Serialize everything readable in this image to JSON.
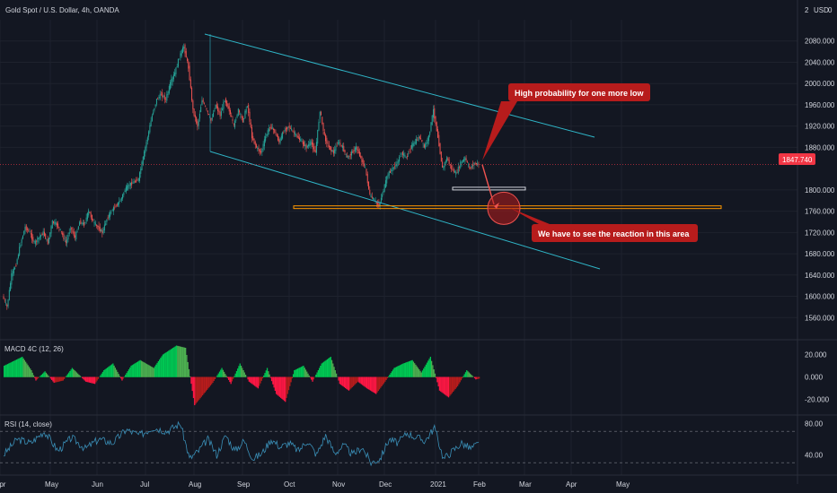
{
  "chart_data": [
    {
      "type": "candlestick",
      "title": "Gold Spot / U.S. Dollar, 4h, OANDA",
      "currency": "USD",
      "ylim": [
        1520,
        2120
      ],
      "y_ticks": [
        {
          "v": 2080,
          "label": "2080.000"
        },
        {
          "v": 2040,
          "label": "2040.000"
        },
        {
          "v": 2000,
          "label": "2000.000"
        },
        {
          "v": 1960,
          "label": "1960.000"
        },
        {
          "v": 1920,
          "label": "1920.000"
        },
        {
          "v": 1880,
          "label": "1880.000"
        },
        {
          "v": 1800,
          "label": "1800.000"
        },
        {
          "v": 1760,
          "label": "1760.000"
        },
        {
          "v": 1720,
          "label": "1720.000"
        },
        {
          "v": 1680,
          "label": "1680.000"
        },
        {
          "v": 1640,
          "label": "1640.000"
        },
        {
          "v": 1600,
          "label": "1600.000"
        },
        {
          "v": 1560,
          "label": "1560.000"
        }
      ],
      "partial_top_label": "2",
      "partial_top_label_tail": "0",
      "last_price": 1847.74,
      "last_price_label": "1847.740",
      "x_ticks": [
        "Apr",
        "May",
        "Jun",
        "Jul",
        "Aug",
        "Sep",
        "Oct",
        "Nov",
        "Dec",
        "2021",
        "Feb",
        "Mar",
        "Apr",
        "May"
      ],
      "price_path": [
        [
          0,
          1600
        ],
        [
          1,
          1580
        ],
        [
          2,
          1640
        ],
        [
          3,
          1660
        ],
        [
          4,
          1700
        ],
        [
          5,
          1730
        ],
        [
          6,
          1720
        ],
        [
          7,
          1700
        ],
        [
          8,
          1710
        ],
        [
          9,
          1720
        ],
        [
          10,
          1700
        ],
        [
          11,
          1740
        ],
        [
          12,
          1735
        ],
        [
          13,
          1720
        ],
        [
          14,
          1700
        ],
        [
          15,
          1730
        ],
        [
          16,
          1710
        ],
        [
          17,
          1740
        ],
        [
          18,
          1735
        ],
        [
          19,
          1760
        ],
        [
          20,
          1740
        ],
        [
          21,
          1730
        ],
        [
          22,
          1720
        ],
        [
          23,
          1745
        ],
        [
          24,
          1760
        ],
        [
          25,
          1770
        ],
        [
          26,
          1780
        ],
        [
          27,
          1800
        ],
        [
          28,
          1810
        ],
        [
          29,
          1815
        ],
        [
          30,
          1820
        ],
        [
          31,
          1860
        ],
        [
          32,
          1900
        ],
        [
          33,
          1940
        ],
        [
          34,
          1970
        ],
        [
          35,
          1980
        ],
        [
          36,
          1970
        ],
        [
          37,
          2000
        ],
        [
          38,
          2020
        ],
        [
          39,
          2050
        ],
        [
          40,
          2070
        ],
        [
          41,
          2030
        ],
        [
          42,
          1950
        ],
        [
          43,
          1920
        ],
        [
          44,
          1970
        ],
        [
          45,
          1950
        ],
        [
          46,
          1930
        ],
        [
          47,
          1960
        ],
        [
          48,
          1940
        ],
        [
          49,
          1970
        ],
        [
          50,
          1950
        ],
        [
          51,
          1920
        ],
        [
          52,
          1950
        ],
        [
          53,
          1930
        ],
        [
          54,
          1960
        ],
        [
          55,
          1900
        ],
        [
          56,
          1880
        ],
        [
          57,
          1870
        ],
        [
          58,
          1900
        ],
        [
          59,
          1920
        ],
        [
          60,
          1910
        ],
        [
          61,
          1890
        ],
        [
          62,
          1910
        ],
        [
          63,
          1920
        ],
        [
          64,
          1910
        ],
        [
          65,
          1900
        ],
        [
          66,
          1890
        ],
        [
          67,
          1880
        ],
        [
          68,
          1890
        ],
        [
          69,
          1870
        ],
        [
          70,
          1950
        ],
        [
          71,
          1900
        ],
        [
          72,
          1880
        ],
        [
          73,
          1870
        ],
        [
          74,
          1890
        ],
        [
          75,
          1880
        ],
        [
          76,
          1860
        ],
        [
          77,
          1870
        ],
        [
          78,
          1880
        ],
        [
          79,
          1860
        ],
        [
          80,
          1840
        ],
        [
          81,
          1790
        ],
        [
          82,
          1780
        ],
        [
          83,
          1770
        ],
        [
          84,
          1800
        ],
        [
          85,
          1830
        ],
        [
          86,
          1840
        ],
        [
          87,
          1850
        ],
        [
          88,
          1870
        ],
        [
          89,
          1860
        ],
        [
          90,
          1880
        ],
        [
          91,
          1890
        ],
        [
          92,
          1900
        ],
        [
          93,
          1880
        ],
        [
          94,
          1900
        ],
        [
          95,
          1950
        ],
        [
          96,
          1900
        ],
        [
          97,
          1840
        ],
        [
          98,
          1860
        ],
        [
          99,
          1840
        ],
        [
          100,
          1830
        ],
        [
          101,
          1850
        ],
        [
          102,
          1860
        ],
        [
          103,
          1840
        ],
        [
          104,
          1850
        ],
        [
          105,
          1848
        ]
      ],
      "channel_upper": [
        [
          228,
          38
        ],
        [
          662,
          153
        ]
      ],
      "channel_lower": [
        [
          234,
          169
        ],
        [
          668,
          300
        ]
      ],
      "support_zone": {
        "y_top": 1770,
        "y_bottom": 1766,
        "label": ""
      },
      "small_zone": {
        "y_top": 1805,
        "y_bottom": 1800
      },
      "target_circle": {
        "y": 1762
      },
      "annotations": [
        {
          "text": "High probability for one more low"
        },
        {
          "text": "We have to see the reaction in this area"
        }
      ]
    },
    {
      "type": "histogram",
      "title": "MACD 4C (12, 26)",
      "y_ticks": [
        {
          "v": 20,
          "label": "20.000"
        },
        {
          "v": 0,
          "label": "0.000"
        },
        {
          "v": -20,
          "label": "-20.000"
        }
      ],
      "ylim": [
        -30,
        30
      ],
      "values_path": [
        [
          0,
          10
        ],
        [
          4,
          18
        ],
        [
          6,
          6
        ],
        [
          7,
          -3
        ],
        [
          9,
          5
        ],
        [
          11,
          -5
        ],
        [
          13,
          -3
        ],
        [
          15,
          8
        ],
        [
          18,
          -4
        ],
        [
          20,
          -6
        ],
        [
          22,
          6
        ],
        [
          24,
          12
        ],
        [
          26,
          -3
        ],
        [
          28,
          10
        ],
        [
          30,
          15
        ],
        [
          33,
          8
        ],
        [
          35,
          20
        ],
        [
          38,
          28
        ],
        [
          40,
          26
        ],
        [
          42,
          -25
        ],
        [
          44,
          -15
        ],
        [
          46,
          -5
        ],
        [
          48,
          8
        ],
        [
          50,
          -6
        ],
        [
          52,
          12
        ],
        [
          54,
          -4
        ],
        [
          56,
          -10
        ],
        [
          58,
          8
        ],
        [
          60,
          -15
        ],
        [
          62,
          -22
        ],
        [
          64,
          6
        ],
        [
          66,
          10
        ],
        [
          68,
          -4
        ],
        [
          70,
          12
        ],
        [
          72,
          18
        ],
        [
          74,
          -6
        ],
        [
          76,
          -12
        ],
        [
          78,
          -4
        ],
        [
          80,
          -10
        ],
        [
          82,
          -15
        ],
        [
          84,
          -4
        ],
        [
          86,
          8
        ],
        [
          88,
          12
        ],
        [
          90,
          15
        ],
        [
          92,
          4
        ],
        [
          94,
          18
        ],
        [
          96,
          -12
        ],
        [
          98,
          -18
        ],
        [
          100,
          -8
        ],
        [
          102,
          6
        ],
        [
          104,
          -2
        ],
        [
          105,
          -1
        ]
      ]
    },
    {
      "type": "line",
      "title": "RSI (14, close)",
      "y_ticks": [
        {
          "v": 80,
          "label": "80.00"
        },
        {
          "v": 40,
          "label": "40.00"
        }
      ],
      "bands": [
        70,
        30
      ],
      "ylim": [
        20,
        85
      ],
      "values_path": [
        [
          0,
          40
        ],
        [
          3,
          60
        ],
        [
          6,
          55
        ],
        [
          9,
          70
        ],
        [
          12,
          45
        ],
        [
          15,
          62
        ],
        [
          18,
          48
        ],
        [
          21,
          60
        ],
        [
          24,
          55
        ],
        [
          27,
          72
        ],
        [
          30,
          65
        ],
        [
          33,
          75
        ],
        [
          36,
          70
        ],
        [
          39,
          80
        ],
        [
          41,
          35
        ],
        [
          43,
          45
        ],
        [
          45,
          60
        ],
        [
          47,
          40
        ],
        [
          49,
          65
        ],
        [
          51,
          45
        ],
        [
          53,
          58
        ],
        [
          55,
          35
        ],
        [
          57,
          42
        ],
        [
          59,
          60
        ],
        [
          61,
          50
        ],
        [
          63,
          55
        ],
        [
          65,
          45
        ],
        [
          67,
          58
        ],
        [
          69,
          40
        ],
        [
          71,
          65
        ],
        [
          73,
          42
        ],
        [
          75,
          52
        ],
        [
          77,
          40
        ],
        [
          79,
          50
        ],
        [
          81,
          30
        ],
        [
          83,
          35
        ],
        [
          85,
          60
        ],
        [
          87,
          55
        ],
        [
          89,
          68
        ],
        [
          91,
          62
        ],
        [
          93,
          58
        ],
        [
          95,
          75
        ],
        [
          97,
          35
        ],
        [
          99,
          45
        ],
        [
          101,
          55
        ],
        [
          103,
          48
        ],
        [
          105,
          55
        ]
      ]
    }
  ]
}
